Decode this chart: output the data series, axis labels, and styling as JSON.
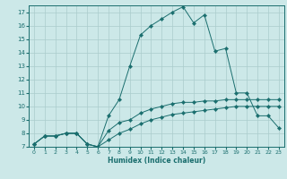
{
  "xlabel": "Humidex (Indice chaleur)",
  "bg_color": "#cce8e8",
  "grid_color": "#aacccc",
  "line_color": "#1a6e6e",
  "xlim": [
    -0.5,
    23.5
  ],
  "ylim": [
    7,
    17.5
  ],
  "xticks": [
    0,
    1,
    2,
    3,
    4,
    5,
    6,
    7,
    8,
    9,
    10,
    11,
    12,
    13,
    14,
    15,
    16,
    17,
    18,
    19,
    20,
    21,
    22,
    23
  ],
  "yticks": [
    7,
    8,
    9,
    10,
    11,
    12,
    13,
    14,
    15,
    16,
    17
  ],
  "line1_x": [
    0,
    1,
    2,
    3,
    4,
    5,
    6,
    7,
    8,
    9,
    10,
    11,
    12,
    13,
    14,
    15,
    16,
    17,
    18,
    19,
    20,
    21,
    22,
    23
  ],
  "line1_y": [
    7.2,
    7.8,
    7.8,
    8.0,
    8.0,
    7.2,
    7.0,
    8.2,
    8.8,
    9.0,
    9.5,
    9.8,
    10.0,
    10.2,
    10.3,
    10.3,
    10.4,
    10.4,
    10.5,
    10.5,
    10.5,
    10.5,
    10.5,
    10.5
  ],
  "line2_x": [
    0,
    1,
    2,
    3,
    4,
    5,
    6,
    7,
    8,
    9,
    10,
    11,
    12,
    13,
    14,
    15,
    16,
    17,
    18,
    19,
    20,
    21,
    22,
    23
  ],
  "line2_y": [
    7.2,
    7.8,
    7.8,
    8.0,
    8.0,
    7.2,
    7.0,
    7.5,
    8.0,
    8.3,
    8.7,
    9.0,
    9.2,
    9.4,
    9.5,
    9.6,
    9.7,
    9.8,
    9.9,
    10.0,
    10.0,
    10.0,
    10.0,
    10.0
  ],
  "line3_x": [
    0,
    1,
    2,
    3,
    4,
    5,
    6,
    7,
    8,
    9,
    10,
    11,
    12,
    13,
    14,
    15,
    16,
    17,
    18,
    19,
    20,
    21,
    22,
    23
  ],
  "line3_y": [
    7.2,
    7.8,
    7.8,
    8.0,
    8.0,
    7.2,
    7.0,
    9.3,
    10.5,
    13.0,
    15.3,
    16.0,
    16.5,
    17.0,
    17.4,
    16.2,
    16.8,
    14.1,
    14.3,
    11.0,
    11.0,
    9.3,
    9.3,
    8.4
  ]
}
